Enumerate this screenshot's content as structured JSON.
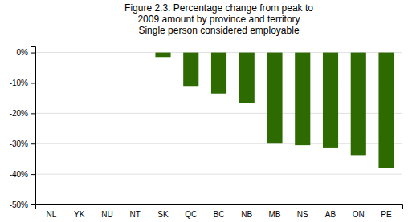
{
  "chart_data": {
    "type": "bar",
    "title": "Figure 2.3: Percentage change from peak to\n2009 amount by province and territory\nSingle person considered employable",
    "categories": [
      "NL",
      "YK",
      "NU",
      "NT",
      "SK",
      "QC",
      "BC",
      "NB",
      "MB",
      "NS",
      "AB",
      "ON",
      "PE"
    ],
    "values": [
      0,
      0,
      0,
      0,
      -1.5,
      -11.0,
      -13.5,
      -16.5,
      -30.0,
      -30.5,
      -31.5,
      -34.0,
      -38.0
    ],
    "color": "#2d6a00",
    "ylim": [
      -50,
      2
    ],
    "yticks": [
      {
        "value": 0,
        "label": "0%"
      },
      {
        "value": -10,
        "label": "-10%"
      },
      {
        "value": -20,
        "label": "-20%"
      },
      {
        "value": -30,
        "label": "-30%"
      },
      {
        "value": -40,
        "label": "-40%"
      },
      {
        "value": -50,
        "label": "-50%"
      }
    ],
    "grid": true
  }
}
